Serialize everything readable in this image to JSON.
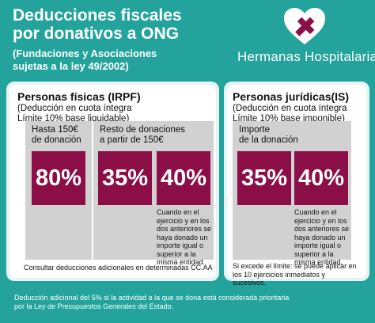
{
  "header": {
    "title_line1": "Deducciones fiscales",
    "title_line2": "por donativos a ONG",
    "subtitle_line1": "(Fundaciones y Asociaciones",
    "subtitle_line2": "sujetas a la ley 49/2002)"
  },
  "logo": {
    "text": "Hermanas Hospitalarias",
    "icon": "heart-cross-logo"
  },
  "colors": {
    "background": "#23a39b",
    "accent": "#8c0e47",
    "panel": "#d1d1d1"
  },
  "irpf": {
    "title": "Personas físicas (IRPF)",
    "sub_line1": "(Deducción en cuota íntegra",
    "sub_line2": "Límite 10% base liquidable)",
    "col1_line1": "Hasta 150€",
    "col1_line2": "de donación",
    "col1_pct": "80%",
    "col2_line1": "Resto de donaciones",
    "col2_line2": "a partir de 150€",
    "col2_pct_a": "35%",
    "col2_pct_b": "40%",
    "note_line1": "Cuando en el",
    "note_line2": "ejercicio y en los",
    "note_line3": "dos anteriores se",
    "note_line4": "haya donado un",
    "note_line5": "importe igual o",
    "note_line6": "superior a la",
    "note_line7": "misma entidad.",
    "footer": "Consultar deducciones adicionales en determinadas CC.AA"
  },
  "is": {
    "title": "Personas jurídicas(IS)",
    "sub_line1": "(Deducción en cuota íntegra",
    "sub_line2": "Límite 10% base imponible)",
    "col_line1": "Importe",
    "col_line2": "de la donación",
    "pct_a": "35%",
    "pct_b": "40%",
    "note_line1": "Cuando en el",
    "note_line2": "ejercicio y en los",
    "note_line3": "dos anteriores se",
    "note_line4": "haya donado un",
    "note_line5": "importe igual o",
    "note_line6": "superior a la",
    "note_line7": "misma entidad.",
    "footer_line1": "Si excede el límite: se puede aplicar en",
    "footer_line2": "los 10 ejercicios inmediatos y",
    "footer_line3": "sucesivos."
  },
  "bottom_note": {
    "line1": "Deducción adicional del 5% si la actividad a la que se dona está considerada prioritaria",
    "line2": "por la Ley de Presupuestos Generales del Estado."
  }
}
